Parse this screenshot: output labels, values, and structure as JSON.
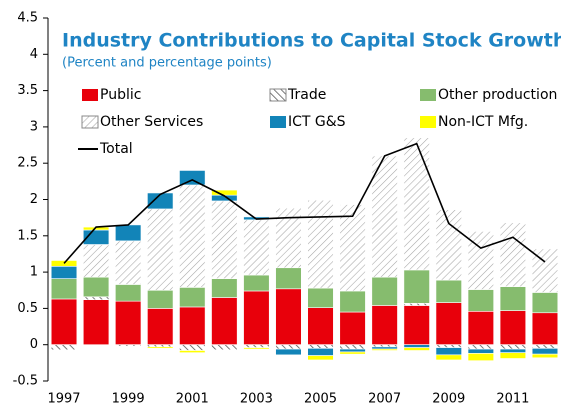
{
  "chart_data": {
    "type": "bar",
    "stacked": true,
    "title": "Industry Contributions to Capital Stock Growth",
    "subtitle": "(Percent and percentage points)",
    "categories": [
      "1997",
      null,
      "1999",
      null,
      "2001",
      null,
      "2003",
      null,
      "2005",
      null,
      "2007",
      null,
      "2009",
      null,
      "2011",
      null
    ],
    "ylim": [
      -0.5,
      4.5
    ],
    "yticks": [
      -0.5,
      0,
      0.5,
      1,
      1.5,
      2,
      2.5,
      3,
      3.5,
      4,
      4.5
    ],
    "series": [
      {
        "name": "Public",
        "color": "#e8000b",
        "values": [
          0.63,
          0.62,
          0.6,
          0.5,
          0.52,
          0.65,
          0.74,
          0.77,
          0.51,
          0.45,
          0.54,
          0.54,
          0.58,
          0.46,
          0.47,
          0.44
        ]
      },
      {
        "name": "Trade",
        "color": "#555555",
        "hatch": true,
        "values": [
          -0.07,
          0.04,
          -0.02,
          -0.03,
          -0.08,
          -0.07,
          -0.04,
          -0.06,
          -0.05,
          -0.06,
          -0.03,
          0.03,
          -0.04,
          -0.06,
          -0.06,
          -0.05
        ]
      },
      {
        "name": "Other production",
        "color": "#86bc6e",
        "values": [
          0.28,
          0.27,
          0.23,
          0.25,
          0.27,
          0.26,
          0.22,
          0.29,
          0.27,
          0.29,
          0.39,
          0.46,
          0.31,
          0.3,
          0.33,
          0.28
        ]
      },
      {
        "name": "Other Services",
        "color": "#a6a6a6",
        "hatch": true,
        "values": [
          0,
          0.45,
          0.6,
          1.12,
          1.41,
          1.07,
          0.76,
          0.82,
          1.21,
          1.19,
          1.67,
          1.82,
          0.97,
          0.8,
          0.88,
          0.6
        ]
      },
      {
        "name": "ICT G&S",
        "color": "#1284b8",
        "values": [
          0.17,
          0.2,
          0.22,
          0.22,
          0.2,
          0.08,
          0.04,
          -0.08,
          -0.1,
          -0.04,
          -0.03,
          -0.04,
          -0.1,
          -0.06,
          -0.05,
          -0.08
        ]
      },
      {
        "name": "Non-ICT Mfg.",
        "color": "#ffff00",
        "values": [
          0.08,
          0.04,
          0,
          -0.02,
          -0.03,
          0.07,
          -0.02,
          0,
          -0.06,
          -0.03,
          -0.02,
          -0.04,
          -0.07,
          -0.1,
          -0.08,
          -0.05
        ]
      },
      {
        "name": "Total",
        "type": "line",
        "color": "#000000",
        "values": [
          1.12,
          1.62,
          1.65,
          2.07,
          2.27,
          2.05,
          1.73,
          1.75,
          1.76,
          1.77,
          2.6,
          2.77,
          1.67,
          1.33,
          1.48,
          1.14
        ]
      }
    ]
  }
}
